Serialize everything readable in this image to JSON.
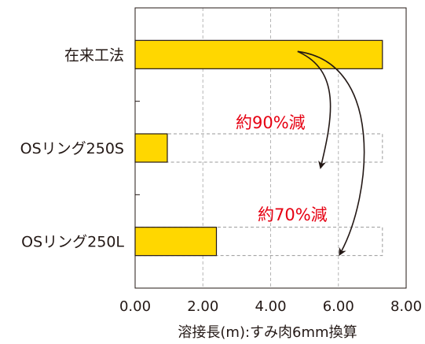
{
  "chart_data": {
    "type": "bar",
    "orientation": "horizontal",
    "categories": [
      "在来工法",
      "OSリング250S",
      "OSリング250L"
    ],
    "values": [
      7.3,
      0.95,
      2.4
    ],
    "reference_value": 7.3,
    "xlabel": "溶接長(m):すみ肉6mm換算",
    "xlim": [
      0,
      8
    ],
    "xticks": [
      "0.00",
      "2.00",
      "4.00",
      "6.00",
      "8.00"
    ],
    "grid": "vertical dashed",
    "annotations": [
      {
        "text": "約90%減",
        "target": "OSリング250S"
      },
      {
        "text": "約70%減",
        "target": "OSリング250L"
      }
    ],
    "colors": {
      "bar": "#ffd700",
      "bar_stroke": "#231815",
      "annotation": "#e60012",
      "arrow": "#231815",
      "ghost": "#9a9a9a"
    }
  }
}
